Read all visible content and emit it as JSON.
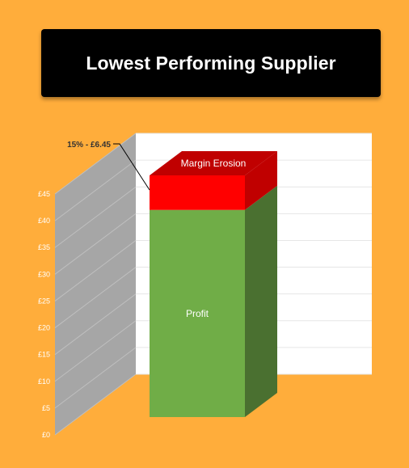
{
  "title": "Lowest Performing Supplier",
  "chart_data": {
    "type": "bar",
    "stacked": true,
    "three_d": true,
    "categories": [
      ""
    ],
    "series": [
      {
        "name": "Profit",
        "values": [
          38.7
        ],
        "color": "#70ad47",
        "side_color": "#4a7030"
      },
      {
        "name": "Margin Erosion",
        "values": [
          6.45
        ],
        "color": "#ff0000",
        "side_color": "#c00000"
      }
    ],
    "ylim": [
      0,
      45
    ],
    "y_ticks": [
      "£0",
      "£5",
      "£10",
      "£15",
      "£20",
      "£25",
      "£30",
      "£35",
      "£40",
      "£45"
    ],
    "annotation": "15% - £6.45",
    "grid": true,
    "legend": "none",
    "background_color": "#ffad3b",
    "plot_color": "#ffffff",
    "wall_color": "#a6a6a6"
  }
}
